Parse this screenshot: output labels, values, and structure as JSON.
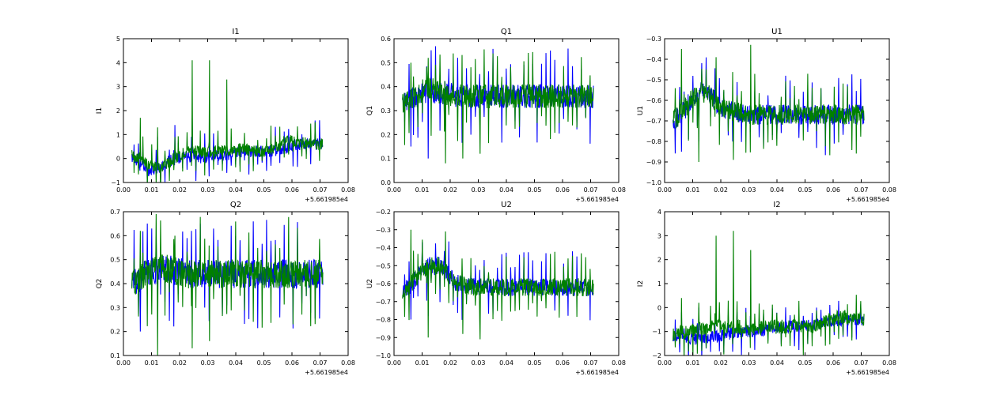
{
  "chart_data": [
    {
      "type": "line",
      "title": "I1",
      "ylabel": "I1",
      "xlim": [
        0.0,
        0.08
      ],
      "ylim": [
        -1,
        5
      ],
      "xticks": [
        "0.00",
        "0.01",
        "0.02",
        "0.03",
        "0.04",
        "0.05",
        "0.06",
        "0.07",
        "0.08"
      ],
      "yticks": [
        "−1",
        "0",
        "1",
        "2",
        "3",
        "4",
        "5"
      ],
      "x_offset_label": "+5.661985e4",
      "x_range": [
        0.003,
        0.071
      ],
      "series": [
        {
          "color": "#0000ff",
          "values": [
            0.0,
            -0.3,
            -0.5,
            -0.4,
            -0.1,
            0.0,
            0.1,
            0.05,
            0.05,
            0.1,
            0.15,
            0.2,
            0.3,
            0.3,
            0.3,
            0.3,
            0.35,
            0.45,
            0.6,
            0.6,
            0.6,
            0.6
          ],
          "noise": 0.25,
          "spikes": [
            0.8,
            0.9,
            1.4,
            1.7,
            1.6
          ]
        },
        {
          "color": "#008000",
          "values": [
            0.2,
            0.0,
            -0.3,
            -0.4,
            -0.2,
            0.1,
            0.3,
            0.3,
            0.25,
            0.3,
            0.35,
            0.3,
            0.4,
            0.35,
            0.3,
            0.35,
            0.5,
            0.8,
            0.7,
            0.65,
            0.6,
            0.6
          ],
          "noise": 0.25,
          "spikes": [
            1.7,
            1.3,
            0.9,
            4.1,
            4.1,
            3.3
          ]
        }
      ]
    },
    {
      "type": "line",
      "title": "Q1",
      "ylabel": "Q1",
      "xlim": [
        0.0,
        0.08
      ],
      "ylim": [
        0.0,
        0.6
      ],
      "xticks": [
        "0.00",
        "0.01",
        "0.02",
        "0.03",
        "0.04",
        "0.05",
        "0.06",
        "0.07",
        "0.08"
      ],
      "yticks": [
        "0.0",
        "0.1",
        "0.2",
        "0.3",
        "0.4",
        "0.5",
        "0.6"
      ],
      "x_offset_label": "+5.661985e4",
      "x_range": [
        0.003,
        0.071
      ],
      "series": [
        {
          "color": "#0000ff",
          "values": [
            0.33,
            0.35,
            0.37,
            0.38,
            0.38,
            0.37,
            0.36,
            0.36,
            0.36,
            0.36,
            0.36,
            0.36,
            0.36,
            0.36,
            0.36,
            0.36,
            0.36,
            0.36,
            0.36,
            0.36,
            0.36,
            0.36
          ],
          "noise": 0.05,
          "spikes": [
            0.15,
            0.1
          ]
        },
        {
          "color": "#008000",
          "values": [
            0.33,
            0.35,
            0.38,
            0.39,
            0.38,
            0.37,
            0.36,
            0.36,
            0.36,
            0.36,
            0.36,
            0.36,
            0.36,
            0.36,
            0.36,
            0.36,
            0.36,
            0.36,
            0.36,
            0.36,
            0.36,
            0.36
          ],
          "noise": 0.05,
          "spikes": [
            0.5,
            0.52,
            0.08,
            0.1,
            0.12
          ]
        }
      ]
    },
    {
      "type": "line",
      "title": "U1",
      "ylabel": "U1",
      "xlim": [
        0.0,
        0.08
      ],
      "ylim": [
        -1.0,
        -0.3
      ],
      "xticks": [
        "0.00",
        "0.01",
        "0.02",
        "0.03",
        "0.04",
        "0.05",
        "0.06",
        "0.07",
        "0.08"
      ],
      "yticks": [
        "−1.0",
        "−0.9",
        "−0.8",
        "−0.7",
        "−0.6",
        "−0.5",
        "−0.4",
        "−0.3"
      ],
      "x_offset_label": "+5.661985e4",
      "x_range": [
        0.003,
        0.071
      ],
      "series": [
        {
          "color": "#0000ff",
          "values": [
            -0.7,
            -0.66,
            -0.6,
            -0.56,
            -0.57,
            -0.62,
            -0.65,
            -0.66,
            -0.67,
            -0.67,
            -0.67,
            -0.67,
            -0.67,
            -0.67,
            -0.67,
            -0.67,
            -0.67,
            -0.67,
            -0.67,
            -0.67,
            -0.67,
            -0.67
          ],
          "noise": 0.05,
          "spikes": [
            -0.85,
            -0.8
          ]
        },
        {
          "color": "#008000",
          "values": [
            -0.7,
            -0.66,
            -0.6,
            -0.56,
            -0.57,
            -0.62,
            -0.65,
            -0.66,
            -0.67,
            -0.67,
            -0.67,
            -0.67,
            -0.67,
            -0.67,
            -0.67,
            -0.67,
            -0.67,
            -0.67,
            -0.67,
            -0.67,
            -0.67,
            -0.67
          ],
          "noise": 0.05,
          "spikes": [
            -0.35,
            -0.9,
            -0.39,
            -0.89,
            -0.33
          ]
        }
      ]
    },
    {
      "type": "line",
      "title": "Q2",
      "ylabel": "Q2",
      "xlim": [
        0.0,
        0.08
      ],
      "ylim": [
        0.1,
        0.7
      ],
      "xticks": [
        "0.00",
        "0.01",
        "0.02",
        "0.03",
        "0.04",
        "0.05",
        "0.06",
        "0.07",
        "0.08"
      ],
      "yticks": [
        "0.1",
        "0.2",
        "0.3",
        "0.4",
        "0.5",
        "0.6",
        "0.7"
      ],
      "x_offset_label": "+5.661985e4",
      "x_range": [
        0.003,
        0.071
      ],
      "series": [
        {
          "color": "#0000ff",
          "values": [
            0.4,
            0.43,
            0.45,
            0.46,
            0.46,
            0.45,
            0.44,
            0.44,
            0.44,
            0.44,
            0.44,
            0.44,
            0.44,
            0.44,
            0.44,
            0.44,
            0.44,
            0.44,
            0.44,
            0.44,
            0.44,
            0.44
          ],
          "noise": 0.06,
          "spikes": [
            0.2,
            0.25
          ]
        },
        {
          "color": "#008000",
          "values": [
            0.4,
            0.43,
            0.45,
            0.46,
            0.46,
            0.45,
            0.44,
            0.44,
            0.44,
            0.44,
            0.44,
            0.44,
            0.44,
            0.44,
            0.44,
            0.44,
            0.44,
            0.44,
            0.44,
            0.44,
            0.44,
            0.44
          ],
          "noise": 0.06,
          "spikes": [
            0.62,
            0.1,
            0.6,
            0.13,
            0.16
          ]
        }
      ]
    },
    {
      "type": "line",
      "title": "U2",
      "ylabel": "U2",
      "xlim": [
        0.0,
        0.08
      ],
      "ylim": [
        -1.0,
        -0.2
      ],
      "xticks": [
        "0.00",
        "0.01",
        "0.02",
        "0.03",
        "0.04",
        "0.05",
        "0.06",
        "0.07",
        "0.08"
      ],
      "yticks": [
        "−1.0",
        "−0.9",
        "−0.8",
        "−0.7",
        "−0.6",
        "−0.5",
        "−0.4",
        "−0.3",
        "−0.2"
      ],
      "x_offset_label": "+5.661985e4",
      "x_range": [
        0.003,
        0.071
      ],
      "series": [
        {
          "color": "#0000ff",
          "values": [
            -0.65,
            -0.6,
            -0.54,
            -0.5,
            -0.5,
            -0.55,
            -0.6,
            -0.61,
            -0.62,
            -0.62,
            -0.62,
            -0.62,
            -0.62,
            -0.62,
            -0.62,
            -0.62,
            -0.62,
            -0.62,
            -0.62,
            -0.62,
            -0.62,
            -0.62
          ],
          "noise": 0.05,
          "spikes": [
            -0.8,
            -0.78
          ]
        },
        {
          "color": "#008000",
          "values": [
            -0.65,
            -0.6,
            -0.54,
            -0.5,
            -0.5,
            -0.55,
            -0.6,
            -0.61,
            -0.62,
            -0.62,
            -0.62,
            -0.62,
            -0.62,
            -0.62,
            -0.62,
            -0.62,
            -0.62,
            -0.62,
            -0.62,
            -0.62,
            -0.62,
            -0.62
          ],
          "noise": 0.05,
          "spikes": [
            -0.3,
            -0.9,
            -0.31,
            -0.88,
            -0.91
          ]
        }
      ]
    },
    {
      "type": "line",
      "title": "I2",
      "ylabel": "I2",
      "xlim": [
        0.0,
        0.08
      ],
      "ylim": [
        -2,
        4
      ],
      "xticks": [
        "0.00",
        "0.01",
        "0.02",
        "0.03",
        "0.04",
        "0.05",
        "0.06",
        "0.07",
        "0.08"
      ],
      "yticks": [
        "−2",
        "−1",
        "0",
        "1",
        "2",
        "3",
        "4"
      ],
      "x_offset_label": "+5.661985e4",
      "x_range": [
        0.003,
        0.071
      ],
      "series": [
        {
          "color": "#0000ff",
          "values": [
            -1.2,
            -1.25,
            -1.3,
            -1.3,
            -1.25,
            -1.2,
            -1.1,
            -1.05,
            -1.0,
            -1.0,
            -0.95,
            -0.9,
            -0.85,
            -0.8,
            -0.8,
            -0.75,
            -0.7,
            -0.6,
            -0.55,
            -0.5,
            -0.5,
            -0.5
          ],
          "noise": 0.25,
          "spikes": [
            -0.2,
            0.0
          ]
        },
        {
          "color": "#008000",
          "values": [
            -1.1,
            -1.0,
            -1.0,
            -0.9,
            -0.85,
            -0.8,
            -0.85,
            -0.8,
            -0.85,
            -0.9,
            -0.85,
            -0.8,
            -0.8,
            -0.75,
            -0.8,
            -0.8,
            -0.7,
            -0.5,
            -0.4,
            -0.4,
            -0.45,
            -0.5
          ],
          "noise": 0.3,
          "spikes": [
            0.4,
            0.2,
            3.0,
            3.2,
            2.4
          ]
        }
      ]
    }
  ]
}
